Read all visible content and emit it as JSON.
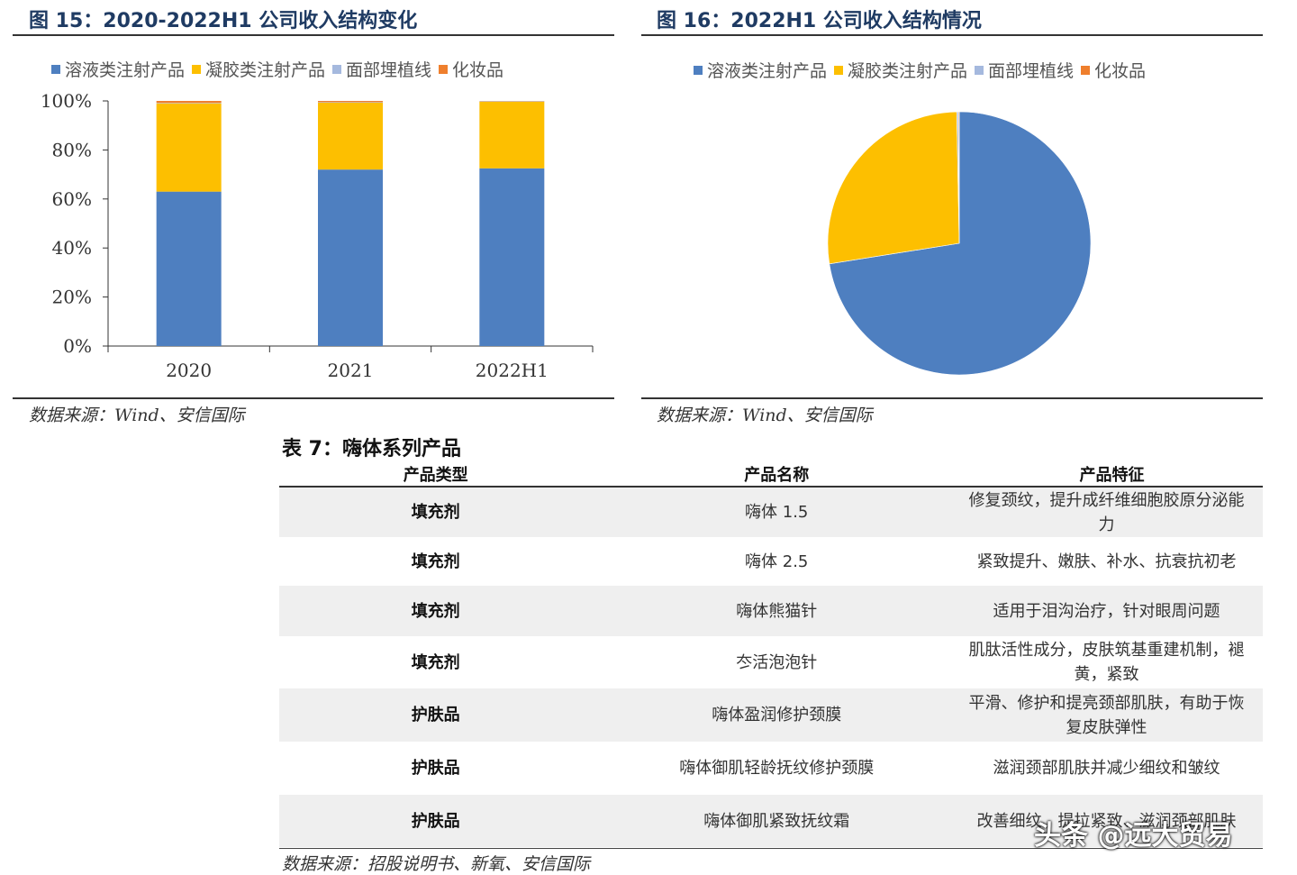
{
  "fig15": {
    "title": "图 15：2020-2022H1 公司收入结构变化",
    "source": "数据来源：Wind、安信国际"
  },
  "fig16": {
    "title": "图 16：2022H1 公司收入结构情况",
    "source": "数据来源：Wind、安信国际"
  },
  "legend": [
    {
      "label": "溶液类注射产品",
      "color": "#4e7fc0"
    },
    {
      "label": "凝胶类注射产品",
      "color": "#fdbf00"
    },
    {
      "label": "面部埋植线",
      "color": "#a5b9de"
    },
    {
      "label": "化妆品",
      "color": "#ef7f2d"
    }
  ],
  "chart_data": [
    {
      "type": "bar",
      "stacked": true,
      "categories": [
        "2020",
        "2021",
        "2022H1"
      ],
      "series": [
        {
          "name": "溶液类注射产品",
          "values": [
            63,
            72,
            72.5
          ],
          "color": "#4e7fc0"
        },
        {
          "name": "凝胶类注射产品",
          "values": [
            36,
            27.3,
            27.2
          ],
          "color": "#fdbf00"
        },
        {
          "name": "面部埋植线",
          "values": [
            0.2,
            0.2,
            0.2
          ],
          "color": "#a5b9de"
        },
        {
          "name": "化妆品",
          "values": [
            0.8,
            0.5,
            0.1
          ],
          "color": "#ef7f2d"
        }
      ],
      "yticks": [
        "0%",
        "20%",
        "40%",
        "60%",
        "80%",
        "100%"
      ],
      "ylim": [
        0,
        100
      ],
      "legend_position": "top"
    },
    {
      "type": "pie",
      "series": [
        {
          "name": "溶液类注射产品",
          "value": 72.5,
          "color": "#4e7fc0"
        },
        {
          "name": "凝胶类注射产品",
          "value": 27.2,
          "color": "#fdbf00"
        },
        {
          "name": "面部埋植线",
          "value": 0.2,
          "color": "#a5b9de"
        },
        {
          "name": "化妆品",
          "value": 0.1,
          "color": "#ef7f2d"
        }
      ],
      "legend_position": "top"
    }
  ],
  "table7": {
    "title": "表 7：嗨体系列产品",
    "headers": [
      "产品类型",
      "产品名称",
      "产品特征"
    ],
    "rows": [
      {
        "type": "填充剂",
        "name": "嗨体 1.5",
        "feature": "修复颈纹，提升成纤维细胞胶原分泌能力"
      },
      {
        "type": "填充剂",
        "name": "嗨体 2.5",
        "feature": "紧致提升、嫩肤、补水、抗衰抗初老"
      },
      {
        "type": "填充剂",
        "name": "嗨体熊猫针",
        "feature": "适用于泪沟治疗，针对眼周问题"
      },
      {
        "type": "填充剂",
        "name": "冭活泡泡针",
        "feature": "肌肽活性成分，皮肤筑基重建机制，褪黄，紧致"
      },
      {
        "type": "护肤品",
        "name": "嗨体盈润修护颈膜",
        "feature": "平滑、修护和提亮颈部肌肤，有助于恢复皮肤弹性"
      },
      {
        "type": "护肤品",
        "name": "嗨体御肌轻龄抚纹修护颈膜",
        "feature": "滋润颈部肌肤并减少细纹和皱纹"
      },
      {
        "type": "护肤品",
        "name": "嗨体御肌紧致抚纹霜",
        "feature": "改善细纹、提拉紧致、滋润颈部肌肤"
      }
    ],
    "source": "数据来源：招股说明书、新氧、安信国际"
  },
  "watermark": "头条 @远大贸易"
}
